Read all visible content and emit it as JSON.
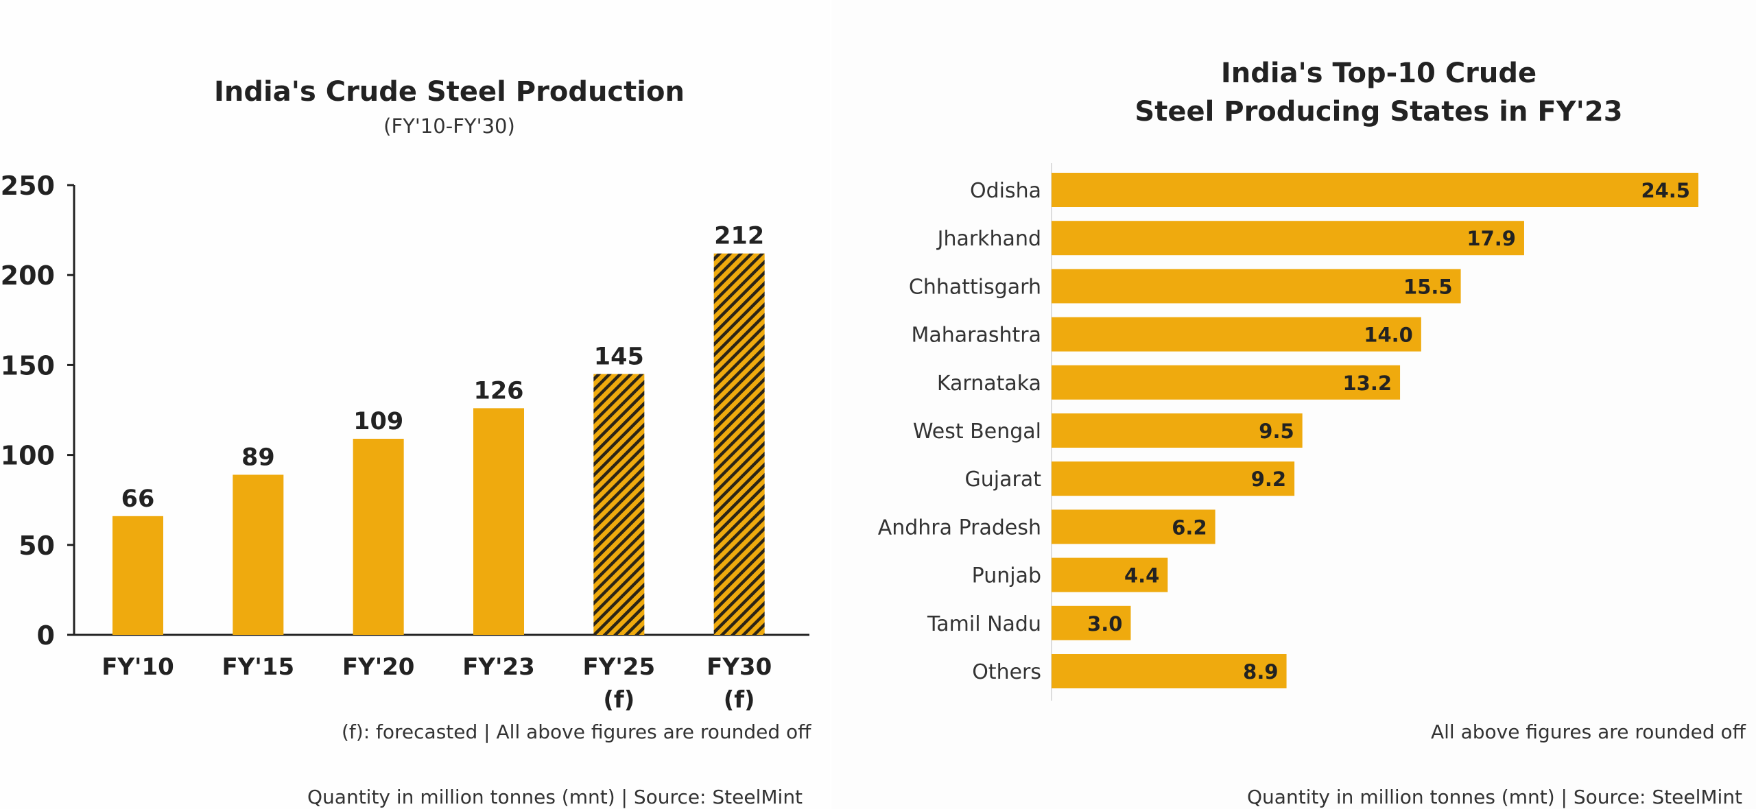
{
  "colors": {
    "bar": "#EFAA0E",
    "hatch": "#2b2416",
    "axis": "#222222",
    "text": "#222222"
  },
  "left": {
    "title": "India's Crude Steel Production",
    "subtitle": "(FY'10-FY'30)",
    "footnote": "(f): forecasted | All above figures are rounded off",
    "source": "Quantity in million tonnes (mnt) | Source: SteelMint"
  },
  "right": {
    "title_line1": "India's Top-10 Crude",
    "title_line2": "Steel Producing States in FY'23",
    "footnote": "All above figures are rounded off",
    "source": "Quantity in million tonnes (mnt) | Source: SteelMint"
  },
  "chart_data": [
    {
      "type": "bar",
      "orientation": "vertical",
      "title": "India's Crude Steel Production",
      "subtitle": "(FY'10-FY'30)",
      "categories": [
        "FY'10",
        "FY'15",
        "FY'20",
        "FY'23",
        "FY'25\n(f)",
        "FY30\n(f)"
      ],
      "values": [
        66,
        89,
        109,
        126,
        145,
        212
      ],
      "forecast": [
        false,
        false,
        false,
        false,
        true,
        true
      ],
      "ylim": [
        0,
        250
      ],
      "yticks": [
        0,
        50,
        100,
        150,
        200,
        250
      ],
      "grid": false,
      "data_labels": true
    },
    {
      "type": "bar",
      "orientation": "horizontal",
      "title": "India's Top-10 Crude Steel Producing States in FY'23",
      "categories": [
        "Odisha",
        "Jharkhand",
        "Chhattisgarh",
        "Maharashtra",
        "Karnataka",
        "West Bengal",
        "Gujarat",
        "Andhra Pradesh",
        "Punjab",
        "Tamil Nadu",
        "Others"
      ],
      "values": [
        24.5,
        17.9,
        15.5,
        14.0,
        13.2,
        9.5,
        9.2,
        6.2,
        4.4,
        3.0,
        8.9
      ],
      "value_labels": [
        "24.5",
        "17.9",
        "15.5",
        "14.0",
        "13.2",
        "9.5",
        "9.2",
        "6.2",
        "4.4",
        "3.0",
        "8.9"
      ],
      "xlim": [
        0,
        24.5
      ],
      "grid": false,
      "data_labels": true
    }
  ]
}
